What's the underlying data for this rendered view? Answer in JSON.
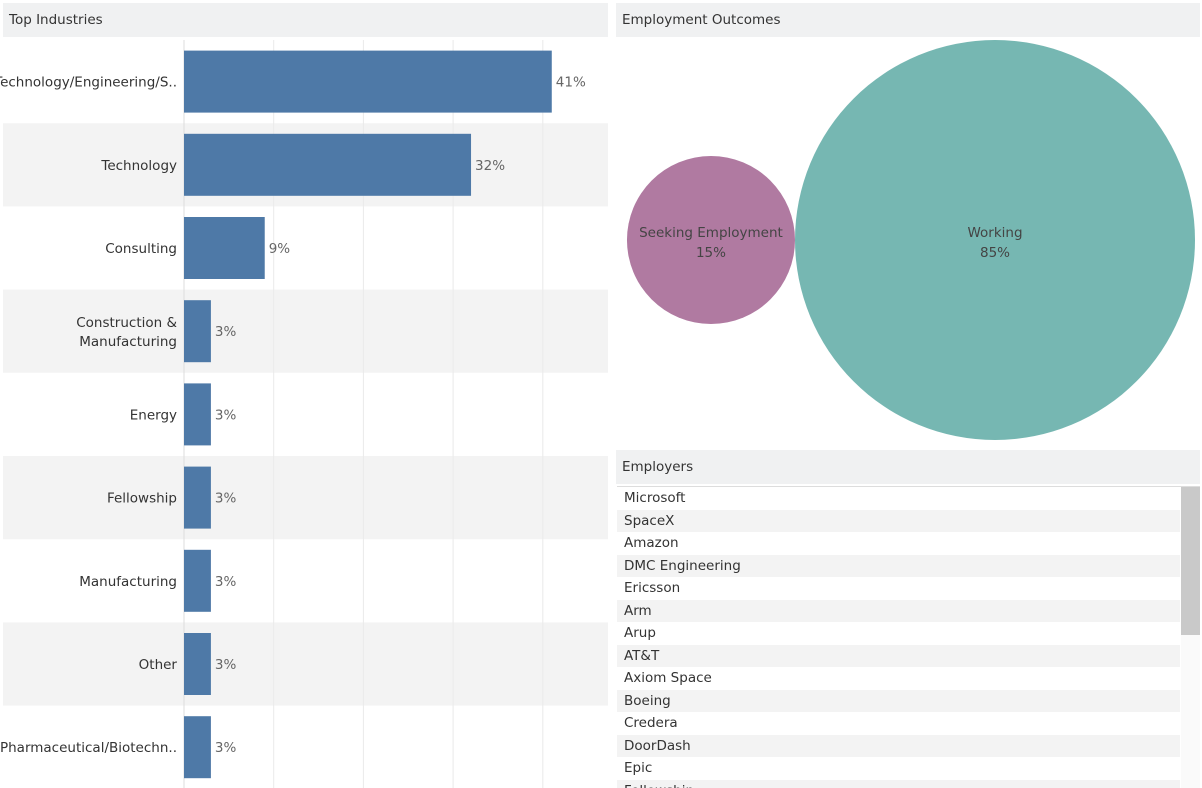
{
  "industries": {
    "title": "Top Industries"
  },
  "employment": {
    "title": "Employment Outcomes"
  },
  "employers": {
    "title": "Employers",
    "items": [
      "Microsoft",
      "SpaceX",
      "Amazon",
      "DMC Engineering",
      "Ericsson",
      "Arm",
      "Arup",
      "AT&T",
      "Axiom Space",
      "Boeing",
      "Credera",
      "DoorDash",
      "Epic",
      "Fellowship"
    ]
  },
  "colors": {
    "bar": "#4e79a7",
    "seeking": "#b07aa1",
    "working": "#76b7b2",
    "band": "#f3f3f3",
    "header": "#f0f1f2"
  },
  "chart_data": [
    {
      "type": "bar",
      "orientation": "horizontal",
      "title": "Top Industries",
      "categories": [
        "Technology/Engineering/S..",
        "Technology",
        "Consulting",
        "Construction & Manufacturing",
        "Energy",
        "Fellowship",
        "Manufacturing",
        "Other",
        "Pharmaceutical/Biotechn.."
      ],
      "values": [
        41,
        32,
        9,
        3,
        3,
        3,
        3,
        3,
        3
      ],
      "value_labels": [
        "41%",
        "32%",
        "9%",
        "3%",
        "3%",
        "3%",
        "3%",
        "3%",
        "3%"
      ],
      "xlim": [
        0,
        48
      ],
      "grid": true
    },
    {
      "type": "bubble",
      "title": "Employment Outcomes",
      "categories": [
        "Seeking Employment",
        "Working"
      ],
      "values": [
        15,
        85
      ],
      "value_labels": [
        "15%",
        "85%"
      ]
    }
  ]
}
